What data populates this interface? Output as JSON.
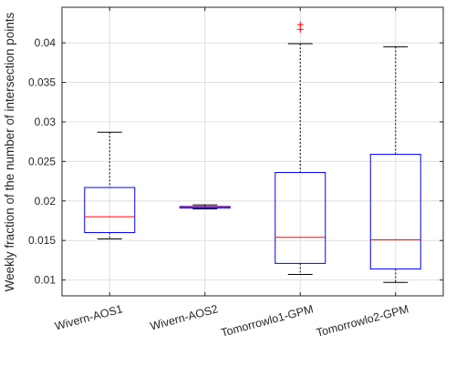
{
  "chart_data": {
    "type": "box",
    "title": "",
    "xlabel": "",
    "ylabel": "Weekly fraction of the number of intersection points",
    "ylim": [
      0.008,
      0.0445
    ],
    "yticks": [
      0.01,
      0.015,
      0.02,
      0.025,
      0.03,
      0.035,
      0.04
    ],
    "ytick_labels": [
      "0.01",
      "0.015",
      "0.02",
      "0.025",
      "0.03",
      "0.035",
      "0.04"
    ],
    "grid": true,
    "colors": {
      "box": "#0000ff",
      "median": "#ff0000",
      "whisker": "#000000",
      "outlier": "#ff0000",
      "grid": "#e0e0e0",
      "axis": "#262626"
    },
    "categories": [
      "Wivern-AOS1",
      "Wivern-AOS2",
      "Tomorrowlo1-GPM",
      "Tomorrowlo2-GPM"
    ],
    "boxes": [
      {
        "name": "Wivern-AOS1",
        "whisker_low": 0.0152,
        "q1": 0.016,
        "median": 0.018,
        "q3": 0.0217,
        "whisker_high": 0.0287,
        "outliers": []
      },
      {
        "name": "Wivern-AOS2",
        "whisker_low": 0.019,
        "q1": 0.0191,
        "median": 0.0192,
        "q3": 0.0193,
        "whisker_high": 0.0195,
        "outliers": []
      },
      {
        "name": "Tomorrowlo1-GPM",
        "whisker_low": 0.0107,
        "q1": 0.0121,
        "median": 0.0154,
        "q3": 0.0236,
        "whisker_high": 0.0399,
        "outliers": [
          0.0423,
          0.0417
        ]
      },
      {
        "name": "Tomorrowlo2-GPM",
        "whisker_low": 0.0097,
        "q1": 0.0114,
        "median": 0.0151,
        "q3": 0.0259,
        "whisker_high": 0.0395,
        "outliers": []
      }
    ]
  }
}
